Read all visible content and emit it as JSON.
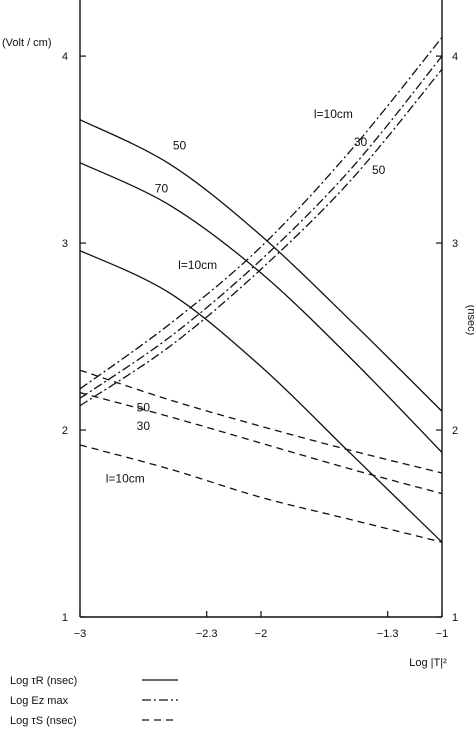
{
  "chart_data": {
    "type": "line",
    "title": "",
    "xlabel": "Log |T|²",
    "ylabel_left": "(Volt / cm)",
    "ylabel_right": "(nsec)",
    "xlim": [
      -3,
      -1
    ],
    "ylim": [
      1,
      4.3
    ],
    "x_ticks": [
      -3,
      -2.3,
      -2,
      -1.3,
      -1
    ],
    "x_tick_labels": [
      "−3",
      "−2.3",
      "−2",
      "−1.3",
      "−1"
    ],
    "y_ticks": [
      1,
      2,
      3,
      4
    ],
    "y_tick_labels": [
      "1",
      "2",
      "3",
      "4"
    ],
    "grid": false,
    "legend_position": "bottom-left",
    "legend": [
      {
        "label": "Log τR (nsec)",
        "style": "solid"
      },
      {
        "label": "Log Ez max",
        "style": "dashdot"
      },
      {
        "label": "Log τS (nsec)",
        "style": "dashed"
      }
    ],
    "series": [
      {
        "group": "tauR",
        "style": "solid",
        "label": "50",
        "x": [
          -3,
          -2.5,
          -2,
          -1.5,
          -1
        ],
        "y": [
          3.66,
          3.42,
          3.04,
          2.58,
          2.1
        ]
      },
      {
        "group": "tauR",
        "style": "solid",
        "label": "70",
        "x": [
          -3,
          -2.5,
          -2,
          -1.5,
          -1
        ],
        "y": [
          3.43,
          3.2,
          2.84,
          2.38,
          1.88
        ]
      },
      {
        "group": "tauR",
        "style": "solid",
        "label": "l=10cm",
        "x": [
          -3,
          -2.5,
          -2,
          -1.5,
          -1
        ],
        "y": [
          2.96,
          2.73,
          2.34,
          1.87,
          1.4
        ]
      },
      {
        "group": "Ez",
        "style": "dashdot",
        "label": "l=10cm",
        "x": [
          -3,
          -2.5,
          -2,
          -1.5,
          -1
        ],
        "y": [
          2.22,
          2.57,
          2.98,
          3.5,
          4.1
        ]
      },
      {
        "group": "Ez",
        "style": "dashdot",
        "label": "30",
        "x": [
          -3,
          -2.5,
          -2,
          -1.5,
          -1
        ],
        "y": [
          2.17,
          2.5,
          2.91,
          3.4,
          4.0
        ]
      },
      {
        "group": "Ez",
        "style": "dashdot",
        "label": "50",
        "x": [
          -3,
          -2.5,
          -2,
          -1.5,
          -1
        ],
        "y": [
          2.13,
          2.45,
          2.86,
          3.34,
          3.93
        ]
      },
      {
        "group": "tauS",
        "style": "dashed",
        "label": "50",
        "x": [
          -3,
          -2.5,
          -2,
          -1.5,
          -1
        ],
        "y": [
          2.32,
          2.16,
          2.02,
          1.89,
          1.77
        ]
      },
      {
        "group": "tauS",
        "style": "dashed",
        "label": "30",
        "x": [
          -3,
          -2.5,
          -2,
          -1.5,
          -1
        ],
        "y": [
          2.2,
          2.07,
          1.93,
          1.79,
          1.66
        ]
      },
      {
        "group": "tauS",
        "style": "dashed",
        "label": "l=10cm",
        "x": [
          -3,
          -2.5,
          -2,
          -1.5,
          -1
        ],
        "y": [
          1.92,
          1.79,
          1.64,
          1.52,
          1.4
        ]
      }
    ],
    "annotations": [
      {
        "text": "50",
        "x": -2.45,
        "y": 3.5
      },
      {
        "text": "70",
        "x": -2.55,
        "y": 3.27
      },
      {
        "text": "l=10cm",
        "x": -2.35,
        "y": 2.86
      },
      {
        "text": "l=10cm",
        "x": -1.6,
        "y": 3.67
      },
      {
        "text": "30",
        "x": -1.45,
        "y": 3.52
      },
      {
        "text": "50",
        "x": -1.35,
        "y": 3.37
      },
      {
        "text": "50",
        "x": -2.65,
        "y": 2.1
      },
      {
        "text": "30",
        "x": -2.65,
        "y": 2.0
      },
      {
        "text": "l=10cm",
        "x": -2.75,
        "y": 1.72
      }
    ]
  }
}
